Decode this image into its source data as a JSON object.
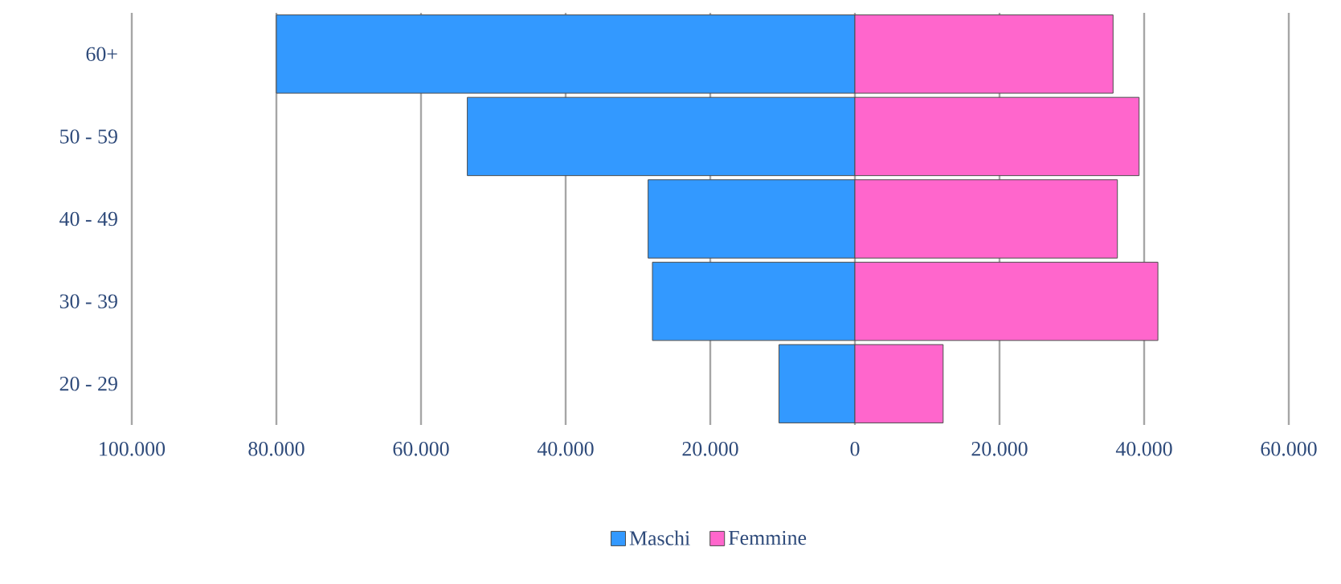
{
  "chart_data": {
    "type": "bar",
    "orientation": "horizontal",
    "categories": [
      "60+",
      "50 - 59",
      "40 - 49",
      "30 - 39",
      "20 - 29"
    ],
    "series": [
      {
        "name": "Maschi",
        "color": "#3399ff",
        "values": [
          -80000,
          -53600,
          -28600,
          -28000,
          -10500
        ]
      },
      {
        "name": "Femmine",
        "color": "#ff66cc",
        "values": [
          35700,
          39300,
          36300,
          41900,
          12200
        ]
      }
    ],
    "xlim": [
      -100000,
      60000
    ],
    "xticks": [
      {
        "value": -100000,
        "label": "100.000"
      },
      {
        "value": -80000,
        "label": "80.000"
      },
      {
        "value": -60000,
        "label": "60.000"
      },
      {
        "value": -40000,
        "label": "40.000"
      },
      {
        "value": -20000,
        "label": "20.000"
      },
      0,
      {
        "value": 20000,
        "label": "20.000"
      },
      {
        "value": 40000,
        "label": "40.000"
      },
      {
        "value": 60000,
        "label": "60.000"
      }
    ],
    "grid": "x",
    "legend": "bottom",
    "stacked": true
  }
}
